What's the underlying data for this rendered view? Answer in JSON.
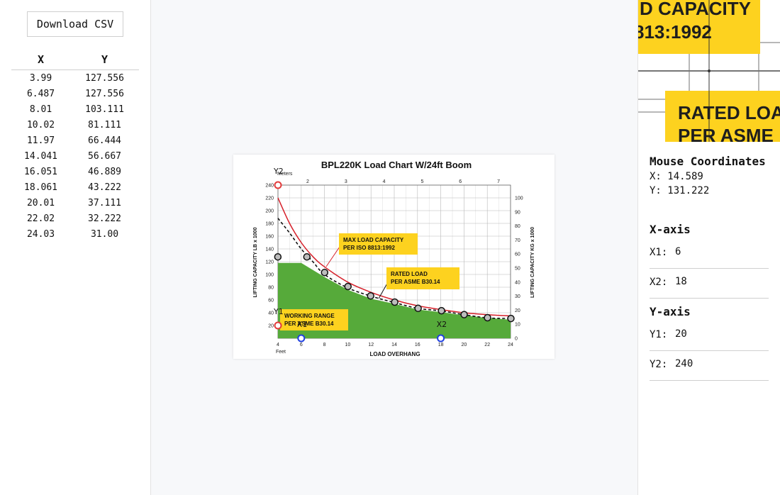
{
  "toolbar": {
    "download_label": "Download CSV"
  },
  "table": {
    "headers": [
      "X",
      "Y"
    ],
    "rows": [
      [
        "3.99",
        "127.556"
      ],
      [
        "6.487",
        "127.556"
      ],
      [
        "8.01",
        "103.111"
      ],
      [
        "10.02",
        "81.111"
      ],
      [
        "11.97",
        "66.444"
      ],
      [
        "14.041",
        "56.667"
      ],
      [
        "16.051",
        "46.889"
      ],
      [
        "18.061",
        "43.222"
      ],
      [
        "20.01",
        "37.111"
      ],
      [
        "22.02",
        "32.222"
      ],
      [
        "24.03",
        "31.00"
      ]
    ]
  },
  "mouse": {
    "title": "Mouse Coordinates",
    "x_text": "X: 14.589",
    "y_text": "Y: 131.222"
  },
  "xaxis": {
    "title": "X-axis",
    "x1_label": "X1:",
    "x1_value": "6",
    "x2_label": "X2:",
    "x2_value": "18"
  },
  "yaxis": {
    "title": "Y-axis",
    "y1_label": "Y1:",
    "y1_value": "20",
    "y2_label": "Y2:",
    "y2_value": "240"
  },
  "magnifier": {
    "line1": "D CAPACITY",
    "line2": "813:1992",
    "line3": "RATED LOA",
    "line4": "PER ASME"
  },
  "chart_data": {
    "type": "line",
    "title": "BPL220K Load Chart W/24ft Boom",
    "xlabel": "LOAD OVERHANG",
    "ylabel_left": "LIFTING CAPACITY  LB x 1000",
    "ylabel_right": "LIFTING CAPACITY  KG x 1000",
    "top_axis_label": "Meters",
    "bottom_unit_label": "Feet",
    "xlim": [
      4,
      24
    ],
    "ylim": [
      0,
      240
    ],
    "x_ticks": [
      "4",
      "6",
      "8",
      "10",
      "12",
      "14",
      "16",
      "18",
      "20",
      "22",
      "24"
    ],
    "y_ticks": [
      "20",
      "40",
      "60",
      "80",
      "100",
      "120",
      "140",
      "160",
      "180",
      "200",
      "220",
      "240"
    ],
    "meter_ticks": [
      "2",
      "3",
      "4",
      "5",
      "6",
      "7"
    ],
    "kg_ticks": [
      "0",
      "10",
      "20",
      "30",
      "40",
      "50",
      "60",
      "70",
      "80",
      "90",
      "100"
    ],
    "max_capacity_curve": {
      "name": "MAX LOAD CAPACITY PER ISO 8813:1992",
      "x": [
        4,
        5,
        6,
        7,
        8,
        10,
        12,
        14,
        16,
        18,
        20,
        22,
        24
      ],
      "y": [
        220,
        180,
        150,
        128,
        112,
        88,
        72,
        60,
        51,
        45,
        40,
        37,
        35
      ]
    },
    "rated_load_curve": {
      "name": "RATED LOAD PER ASME B30.14",
      "x": [
        4,
        5,
        6,
        7,
        8,
        10,
        12,
        14,
        16,
        18,
        20,
        22,
        24
      ],
      "y": [
        188,
        165,
        140,
        120,
        100,
        79,
        66,
        56,
        47,
        43,
        37,
        32,
        31
      ]
    },
    "working_range": {
      "name": "WORKING RANGE PER ASME B30.14",
      "x": [
        4,
        6,
        8,
        10,
        12,
        14,
        16,
        18,
        20,
        22,
        24
      ],
      "y": [
        118,
        118,
        96,
        76,
        62,
        54,
        45,
        41,
        36,
        32,
        29
      ]
    },
    "markers": {
      "y2": "Y2",
      "y1": "Y1",
      "x1": "X1",
      "x2": "X2"
    },
    "calibration": {
      "x1": 6,
      "x2": 18,
      "y1": 20,
      "y2": 240
    },
    "colors": {
      "max_curve": "#d6202a",
      "working_fill": "#56aa3a",
      "callout": "#fdd21f",
      "grid": "#b8b8b8",
      "calib_red": "#e23b3b",
      "calib_blue": "#1f3fe0"
    }
  }
}
